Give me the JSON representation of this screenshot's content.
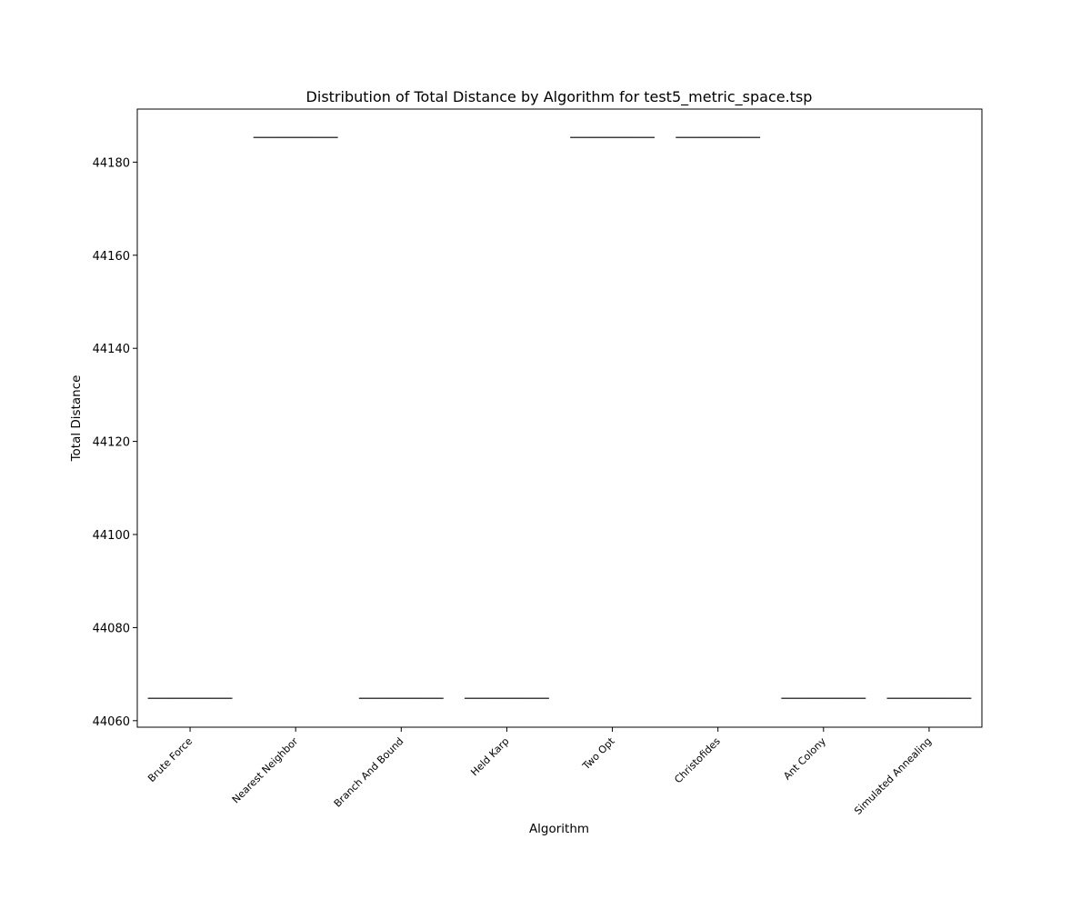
{
  "chart_data": {
    "type": "box",
    "title": "Distribution of Total Distance by Algorithm for test5_metric_space.tsp",
    "xlabel": "Algorithm",
    "ylabel": "Total Distance",
    "categories": [
      "Brute Force",
      "Nearest Neighbor",
      "Branch And Bound",
      "Held Karp",
      "Two Opt",
      "Christofides",
      "Ant Colony",
      "Simulated Annealing"
    ],
    "values": [
      44064.8,
      44185.3,
      44064.8,
      44064.8,
      44185.3,
      44185.3,
      44064.8,
      44064.8
    ],
    "yticks": [
      44060,
      44080,
      44100,
      44120,
      44140,
      44160,
      44180
    ],
    "ylim": [
      44058.6,
      44191.4
    ],
    "grid": false,
    "legend": "none",
    "colors": {
      "box_line": "#3f3f3f",
      "axis": "#000000"
    }
  }
}
